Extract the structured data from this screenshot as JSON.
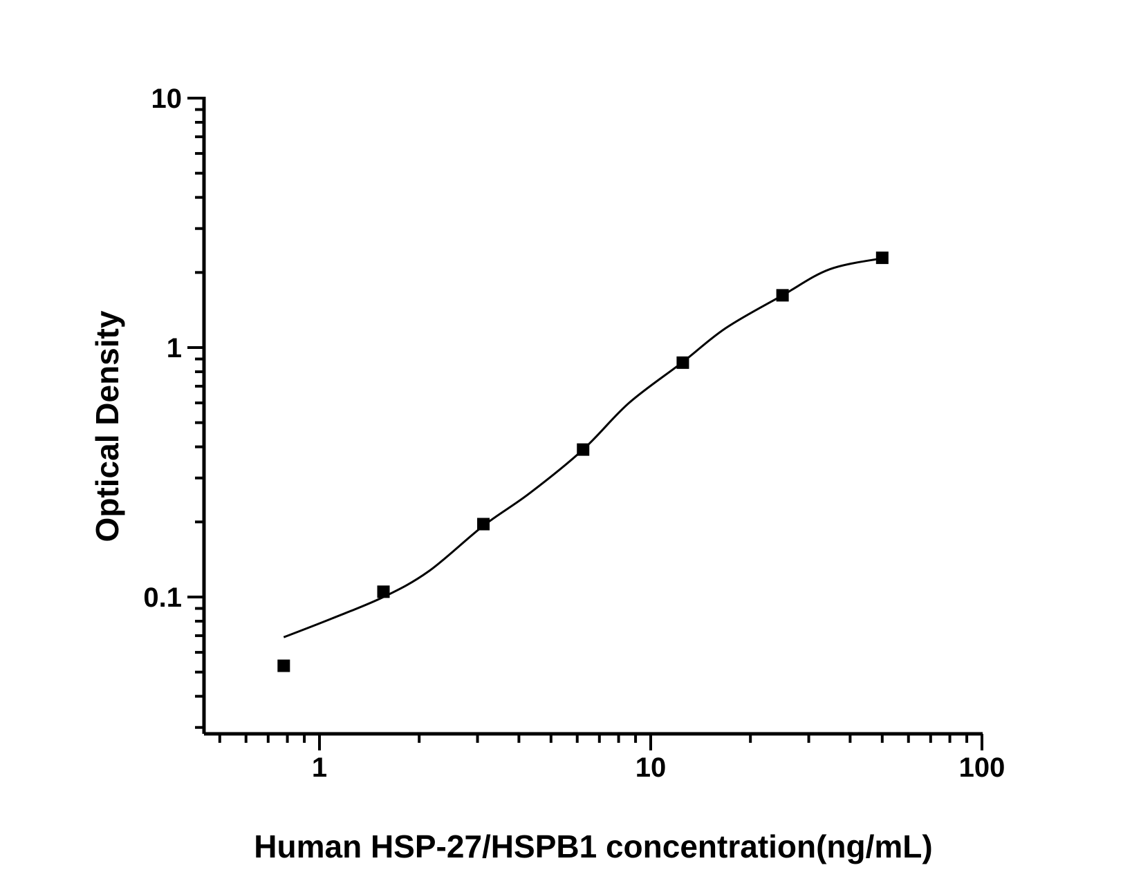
{
  "figure": {
    "background_color": "#ffffff",
    "foreground_color": "#000000"
  },
  "chart_data": {
    "type": "scatter",
    "title": "",
    "xlabel": "Human HSP-27/HSPB1 concentration(ng/mL)",
    "ylabel": "Optical Density",
    "x_scale": "log",
    "y_scale": "log",
    "xlim": [
      0.45,
      100
    ],
    "ylim": [
      0.028,
      10
    ],
    "grid": false,
    "legend_position": "none",
    "x_major_ticks": [
      {
        "value": 1,
        "label": "1"
      },
      {
        "value": 10,
        "label": "10"
      },
      {
        "value": 100,
        "label": "100"
      }
    ],
    "y_major_ticks": [
      {
        "value": 0.1,
        "label": "0.1"
      },
      {
        "value": 1,
        "label": "1"
      },
      {
        "value": 10,
        "label": "10"
      }
    ],
    "x_minor_ticks": [
      0.5,
      0.6,
      0.7,
      0.8,
      0.9,
      2,
      3,
      4,
      5,
      6,
      7,
      8,
      9,
      20,
      30,
      40,
      50,
      60,
      70,
      80,
      90
    ],
    "y_minor_ticks": [
      0.03,
      0.04,
      0.05,
      0.06,
      0.07,
      0.08,
      0.09,
      0.2,
      0.3,
      0.4,
      0.5,
      0.6,
      0.7,
      0.8,
      0.9,
      2,
      3,
      4,
      5,
      6,
      7,
      8,
      9
    ],
    "series": [
      {
        "name": "standard-points",
        "type": "scatter",
        "marker": "filled-square",
        "color": "#000000",
        "points": [
          {
            "x": 0.78,
            "y": 0.053
          },
          {
            "x": 1.56,
            "y": 0.105
          },
          {
            "x": 3.125,
            "y": 0.196
          },
          {
            "x": 6.25,
            "y": 0.39
          },
          {
            "x": 12.5,
            "y": 0.87
          },
          {
            "x": 25,
            "y": 1.62
          },
          {
            "x": 50,
            "y": 2.29
          }
        ]
      },
      {
        "name": "fitted-curve",
        "type": "line",
        "color": "#000000",
        "points": [
          {
            "x": 0.78,
            "y": 0.069
          },
          {
            "x": 1.09,
            "y": 0.082
          },
          {
            "x": 1.56,
            "y": 0.1
          },
          {
            "x": 2.14,
            "y": 0.127
          },
          {
            "x": 3.125,
            "y": 0.193
          },
          {
            "x": 4.3,
            "y": 0.26
          },
          {
            "x": 6.25,
            "y": 0.39
          },
          {
            "x": 8.6,
            "y": 0.6
          },
          {
            "x": 12.5,
            "y": 0.875
          },
          {
            "x": 16.9,
            "y": 1.2
          },
          {
            "x": 25,
            "y": 1.62
          },
          {
            "x": 34.7,
            "y": 2.06
          },
          {
            "x": 50,
            "y": 2.28
          }
        ]
      }
    ]
  }
}
